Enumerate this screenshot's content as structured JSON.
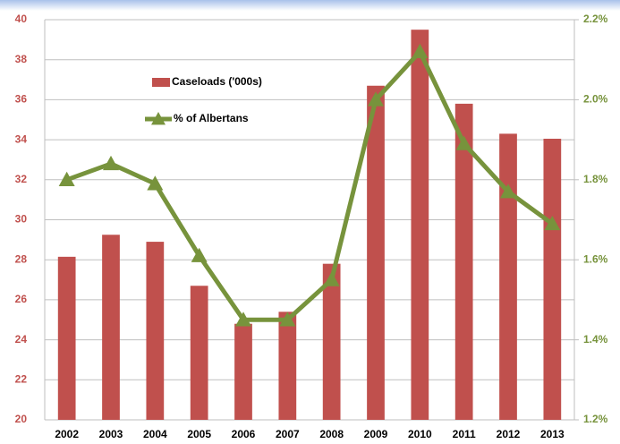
{
  "chart_data": {
    "type": "bar-line",
    "categories": [
      "2002",
      "2003",
      "2004",
      "2005",
      "2006",
      "2007",
      "2008",
      "2009",
      "2010",
      "2011",
      "2012",
      "2013"
    ],
    "series": [
      {
        "name": "Caseloads ('000s)",
        "type": "bar",
        "color": "#c0504d",
        "values": [
          28.15,
          29.25,
          28.9,
          26.7,
          24.8,
          25.4,
          27.8,
          36.7,
          39.5,
          35.8,
          34.3,
          34.05
        ]
      },
      {
        "name": "% of Albertans",
        "type": "line",
        "axis": "y2",
        "color": "#77933c",
        "values": [
          1.8,
          1.84,
          1.79,
          1.61,
          1.45,
          1.45,
          1.55,
          2.0,
          2.12,
          1.89,
          1.77,
          1.69
        ]
      }
    ],
    "ylim": [
      20,
      40
    ],
    "yticks": [
      20,
      22,
      24,
      26,
      28,
      30,
      32,
      34,
      36,
      38,
      40
    ],
    "y2lim": [
      1.2,
      2.2
    ],
    "y2ticks": [
      {
        "value": 1.2,
        "label": "1.2%"
      },
      {
        "value": 1.4,
        "label": "1.4%"
      },
      {
        "value": 1.6,
        "label": "1.6%"
      },
      {
        "value": 1.8,
        "label": "1.8%"
      },
      {
        "value": 2.0,
        "label": "2.0%"
      },
      {
        "value": 2.2,
        "label": "2.2%"
      }
    ],
    "grid": true,
    "legend": "upper left"
  }
}
